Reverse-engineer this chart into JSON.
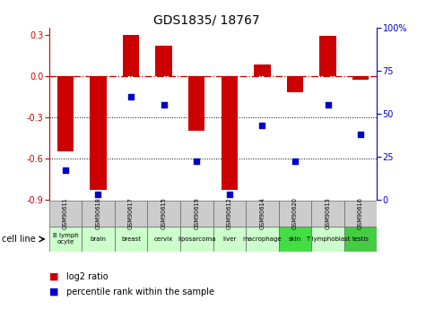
{
  "title": "GDS1835/ 18767",
  "samples": [
    "GSM90611",
    "GSM90618",
    "GSM90617",
    "GSM90615",
    "GSM90619",
    "GSM90612",
    "GSM90614",
    "GSM90620",
    "GSM90613",
    "GSM90616"
  ],
  "cell_lines": [
    "B lymph\nocyte",
    "brain",
    "breast",
    "cervix",
    "liposarcoma",
    "liver",
    "macrophage",
    "skin",
    "T lymphoblast",
    "testis"
  ],
  "cell_bg": [
    "#ccffcc",
    "#ccffcc",
    "#ccffcc",
    "#ccffcc",
    "#ccffcc",
    "#ccffcc",
    "#ccffcc",
    "#44dd44",
    "#ccffcc",
    "#44cc44"
  ],
  "log2_ratio": [
    -0.55,
    -0.83,
    0.3,
    0.22,
    -0.4,
    -0.83,
    0.08,
    -0.12,
    0.29,
    -0.03
  ],
  "percentile_rank": [
    17,
    3,
    60,
    55,
    22,
    3,
    43,
    22,
    55,
    38
  ],
  "ylim_left": [
    -0.9,
    0.35
  ],
  "ylim_right": [
    0,
    100
  ],
  "yticks_left": [
    -0.9,
    -0.6,
    -0.3,
    0,
    0.3
  ],
  "yticks_right": [
    0,
    25,
    50,
    75,
    100
  ],
  "bar_color": "#cc0000",
  "dot_color": "#0000cc",
  "grid_dotted": [
    -0.3,
    -0.6
  ],
  "zero_line_color": "#cc0000",
  "gsm_bg": "#cccccc",
  "bar_width": 0.5,
  "title_fontsize": 10,
  "tick_fontsize": 7,
  "table_label_fontsize": 5,
  "gsm_fontsize": 4.8,
  "legend_fontsize": 7
}
